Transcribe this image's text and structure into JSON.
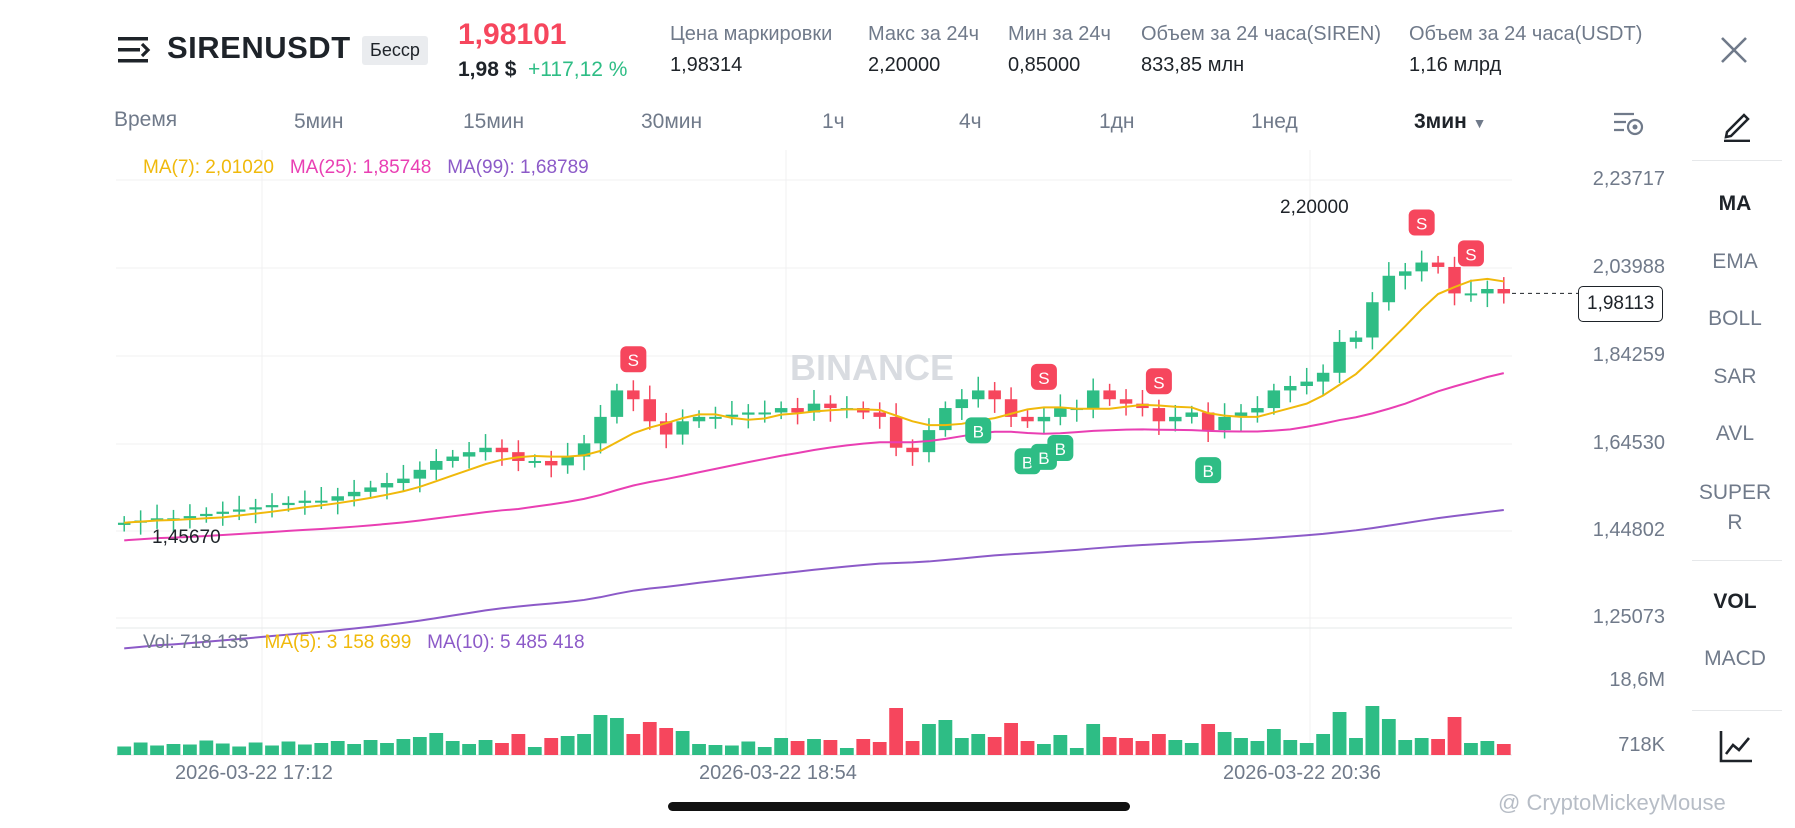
{
  "header": {
    "symbol": "SIRENUSDT",
    "badge": "Бесср",
    "last_price": "1,98101",
    "usd_price": "1,98 $",
    "change_pct": "+117,12 %",
    "stats": [
      {
        "label": "Цена маркировки",
        "value": "1,98314"
      },
      {
        "label": "Макс за 24ч",
        "value": "2,20000"
      },
      {
        "label": "Мин за 24ч",
        "value": "0,85000"
      },
      {
        "label": "Объем за 24 часа(SIREN)",
        "value": "833,85 млн"
      },
      {
        "label": "Объем за 24 часа(USDT)",
        "value": "1,16 млрд"
      }
    ]
  },
  "timeframes": {
    "time_label": "Время",
    "items": [
      "5мин",
      "15мин",
      "30мин",
      "1ч",
      "4ч",
      "1дн",
      "1нед"
    ],
    "active": "3мин"
  },
  "indicators": {
    "main": [
      "MA",
      "EMA",
      "BOLL",
      "SAR",
      "AVL",
      "SUPER",
      "R"
    ],
    "sub": [
      "VOL",
      "MACD"
    ]
  },
  "legend": {
    "ma7": "MA(7): 2,01020",
    "ma25": "MA(25): 1,85748",
    "ma99": "MA(99): 1,68789",
    "vol": "Vol: 718 135",
    "vol_ma5": "MA(5): 3 158 699",
    "vol_ma10": "MA(10): 5 485 418"
  },
  "price_axis": [
    "2,23717",
    "2,03988",
    "1,84259",
    "1,64530",
    "1,44802",
    "1,25073"
  ],
  "volume_axis": [
    "18,6M",
    "718K"
  ],
  "time_axis": [
    "2026-03-22 17:12",
    "2026-03-22 18:54",
    "2026-03-22 20:36"
  ],
  "annotations": {
    "high": "2,20000",
    "low": "1,45670",
    "current": "1,98113",
    "buy": "B",
    "sell": "S"
  },
  "colors": {
    "up": "#2ebd85",
    "down": "#f6465d",
    "ma7": "#f0b90b",
    "ma25": "#e93fb3",
    "ma99": "#8c5ac8"
  },
  "watermark_center": "BINANCE",
  "watermark_credit": "@ CryptoMickeyMouse",
  "chart_data": {
    "type": "candlestick",
    "close": [
      1.46,
      1.465,
      1.47,
      1.47,
      1.475,
      1.48,
      1.485,
      1.49,
      1.495,
      1.5,
      1.505,
      1.51,
      1.51,
      1.52,
      1.53,
      1.54,
      1.55,
      1.56,
      1.58,
      1.6,
      1.61,
      1.62,
      1.63,
      1.62,
      1.6,
      1.6,
      1.59,
      1.61,
      1.64,
      1.7,
      1.76,
      1.74,
      1.69,
      1.66,
      1.69,
      1.7,
      1.7,
      1.705,
      1.71,
      1.71,
      1.72,
      1.71,
      1.73,
      1.72,
      1.72,
      1.71,
      1.7,
      1.63,
      1.62,
      1.67,
      1.72,
      1.74,
      1.76,
      1.74,
      1.7,
      1.69,
      1.7,
      1.72,
      1.72,
      1.76,
      1.74,
      1.73,
      1.72,
      1.69,
      1.7,
      1.71,
      1.67,
      1.7,
      1.71,
      1.72,
      1.76,
      1.77,
      1.78,
      1.8,
      1.87,
      1.88,
      1.96,
      2.02,
      2.03,
      2.05,
      2.04,
      1.98,
      1.98,
      1.99,
      1.98
    ],
    "buy_marker_index": [
      52,
      55,
      56,
      57,
      66
    ],
    "sell_marker_index": [
      31,
      56,
      63,
      79,
      82
    ]
  }
}
